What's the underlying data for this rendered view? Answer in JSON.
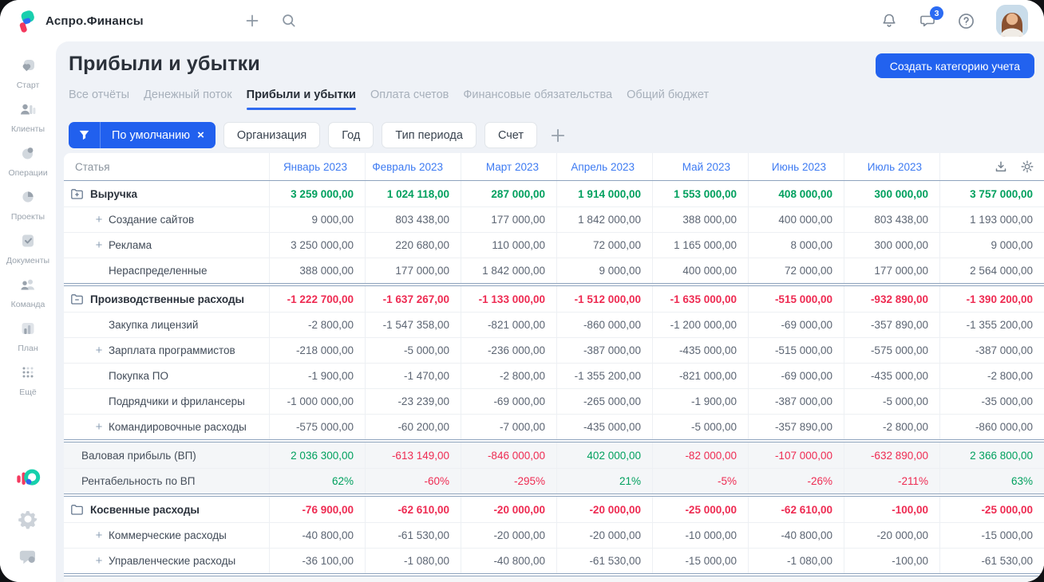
{
  "topbar": {
    "app_name": "Аспро.Финансы",
    "chat_badge": "3"
  },
  "sidebar": {
    "items": [
      {
        "id": "start",
        "label": "Старт",
        "icon": "start"
      },
      {
        "id": "clients",
        "label": "Клиенты",
        "icon": "clients"
      },
      {
        "id": "operations",
        "label": "Операции",
        "icon": "operations"
      },
      {
        "id": "projects",
        "label": "Проекты",
        "icon": "projects"
      },
      {
        "id": "documents",
        "label": "Документы",
        "icon": "documents"
      },
      {
        "id": "team",
        "label": "Команда",
        "icon": "team"
      },
      {
        "id": "plan",
        "label": "План",
        "icon": "plan"
      },
      {
        "id": "more",
        "label": "Ещё",
        "icon": "more"
      }
    ]
  },
  "page": {
    "title": "Прибыли и убытки",
    "create_button_label": "Создать категорию учета"
  },
  "tabs": [
    {
      "label": "Все отчёты",
      "active": false
    },
    {
      "label": "Денежный поток",
      "active": false
    },
    {
      "label": "Прибыли и убытки",
      "active": true
    },
    {
      "label": "Оплата счетов",
      "active": false
    },
    {
      "label": "Финансовые обязательства",
      "active": false
    },
    {
      "label": "Общий бюджет",
      "active": false
    }
  ],
  "filters": {
    "preset": {
      "label": "По умолчанию",
      "clear": "×"
    },
    "chips": [
      {
        "label": "Организация"
      },
      {
        "label": "Год"
      },
      {
        "label": "Тип периода"
      },
      {
        "label": "Счет"
      }
    ]
  },
  "colors": {
    "accent": "#2262ef",
    "positive": "#00a05e",
    "negative": "#ee2b52",
    "month_header": "#3e7bf2"
  },
  "table": {
    "first_col_header": "Статья",
    "months": [
      "Январь 2023",
      "Февраль 2023",
      "Март 2023",
      "Апрель 2023",
      "Май 2023",
      "Июнь 2023",
      "Июль 2023",
      ""
    ],
    "blocks": [
      {
        "rows": [
          {
            "label": "Выручка",
            "kind": "group",
            "icon": "folder-plus-icon",
            "values": [
              "3 259 000,00",
              "1 024 118,00",
              "287 000,00",
              "1 914 000,00",
              "1 553 000,00",
              "408 000,00",
              "300 000,00",
              "3 757 000,00"
            ]
          },
          {
            "label": "Создание сайтов",
            "kind": "sub",
            "plus": true,
            "values": [
              "9 000,00",
              "803 438,00",
              "177 000,00",
              "1 842 000,00",
              "388 000,00",
              "400 000,00",
              "803 438,00",
              "1 193 000,00"
            ]
          },
          {
            "label": "Реклама",
            "kind": "sub",
            "plus": true,
            "values": [
              "3 250 000,00",
              "220 680,00",
              "110 000,00",
              "72 000,00",
              "1 165 000,00",
              "8 000,00",
              "300 000,00",
              "9 000,00"
            ]
          },
          {
            "label": "Нераспределенные",
            "kind": "sub",
            "plus": false,
            "values": [
              "388 000,00",
              "177 000,00",
              "1 842 000,00",
              "9 000,00",
              "400 000,00",
              "72 000,00",
              "177 000,00",
              "2 564 000,00"
            ]
          }
        ]
      },
      {
        "rows": [
          {
            "label": "Производственные расходы",
            "kind": "group",
            "icon": "folder-minus-icon",
            "values": [
              "-1 222 700,00",
              "-1 637 267,00",
              "-1 133 000,00",
              "-1 512 000,00",
              "-1 635 000,00",
              "-515 000,00",
              "-932 890,00",
              "-1 390 200,00"
            ]
          },
          {
            "label": "Закупка лицензий",
            "kind": "sub",
            "plus": false,
            "values": [
              "-2 800,00",
              "-1 547 358,00",
              "-821 000,00",
              "-860 000,00",
              "-1 200 000,00",
              "-69 000,00",
              "-357 890,00",
              "-1 355 200,00"
            ]
          },
          {
            "label": "Зарплата программистов",
            "kind": "sub",
            "plus": true,
            "values": [
              "-218 000,00",
              "-5 000,00",
              "-236 000,00",
              "-387 000,00",
              "-435 000,00",
              "-515 000,00",
              "-575 000,00",
              "-387 000,00"
            ]
          },
          {
            "label": "Покупка ПО",
            "kind": "sub",
            "plus": false,
            "values": [
              "-1 900,00",
              "-1 470,00",
              "-2 800,00",
              "-1 355 200,00",
              "-821 000,00",
              "-69 000,00",
              "-435 000,00",
              "-2 800,00"
            ]
          },
          {
            "label": "Подрядчики и фрилансеры",
            "kind": "sub",
            "plus": false,
            "values": [
              "-1 000 000,00",
              "-23 239,00",
              "-69 000,00",
              "-265 000,00",
              "-1 900,00",
              "-387 000,00",
              "-5 000,00",
              "-35 000,00"
            ]
          },
          {
            "label": "Командировочные расходы",
            "kind": "sub",
            "plus": true,
            "values": [
              "-575 000,00",
              "-60 200,00",
              "-7 000,00",
              "-435 000,00",
              "-5 000,00",
              "-357 890,00",
              "-2 800,00",
              "-860 000,00"
            ]
          }
        ]
      },
      {
        "summary": true,
        "rows": [
          {
            "label": "Валовая прибыль (ВП)",
            "kind": "summary",
            "values": [
              "2 036 300,00",
              "-613 149,00",
              "-846 000,00",
              "402 000,00",
              "-82 000,00",
              "-107 000,00",
              "-632 890,00",
              "2 366 800,00"
            ]
          },
          {
            "label": "Рентабельность по ВП",
            "kind": "summary",
            "values": [
              "62%",
              "-60%",
              "-295%",
              "21%",
              "-5%",
              "-26%",
              "-211%",
              "63%"
            ]
          }
        ]
      },
      {
        "rows": [
          {
            "label": "Косвенные расходы",
            "kind": "group",
            "icon": "folder-icon",
            "values": [
              "-76 900,00",
              "-62 610,00",
              "-20 000,00",
              "-20 000,00",
              "-25 000,00",
              "-62 610,00",
              "-100,00",
              "-25 000,00"
            ]
          },
          {
            "label": "Коммерческие расходы",
            "kind": "sub",
            "plus": true,
            "values": [
              "-40 800,00",
              "-61 530,00",
              "-20 000,00",
              "-20 000,00",
              "-10 000,00",
              "-40 800,00",
              "-20 000,00",
              "-15 000,00"
            ]
          },
          {
            "label": "Управленческие расходы",
            "kind": "sub",
            "plus": true,
            "values": [
              "-36 100,00",
              "-1 080,00",
              "-40 800,00",
              "-61 530,00",
              "-15 000,00",
              "-1 080,00",
              "-100,00",
              "-61 530,00"
            ]
          }
        ]
      },
      {
        "summary": true,
        "partial": true,
        "rows": []
      }
    ]
  }
}
